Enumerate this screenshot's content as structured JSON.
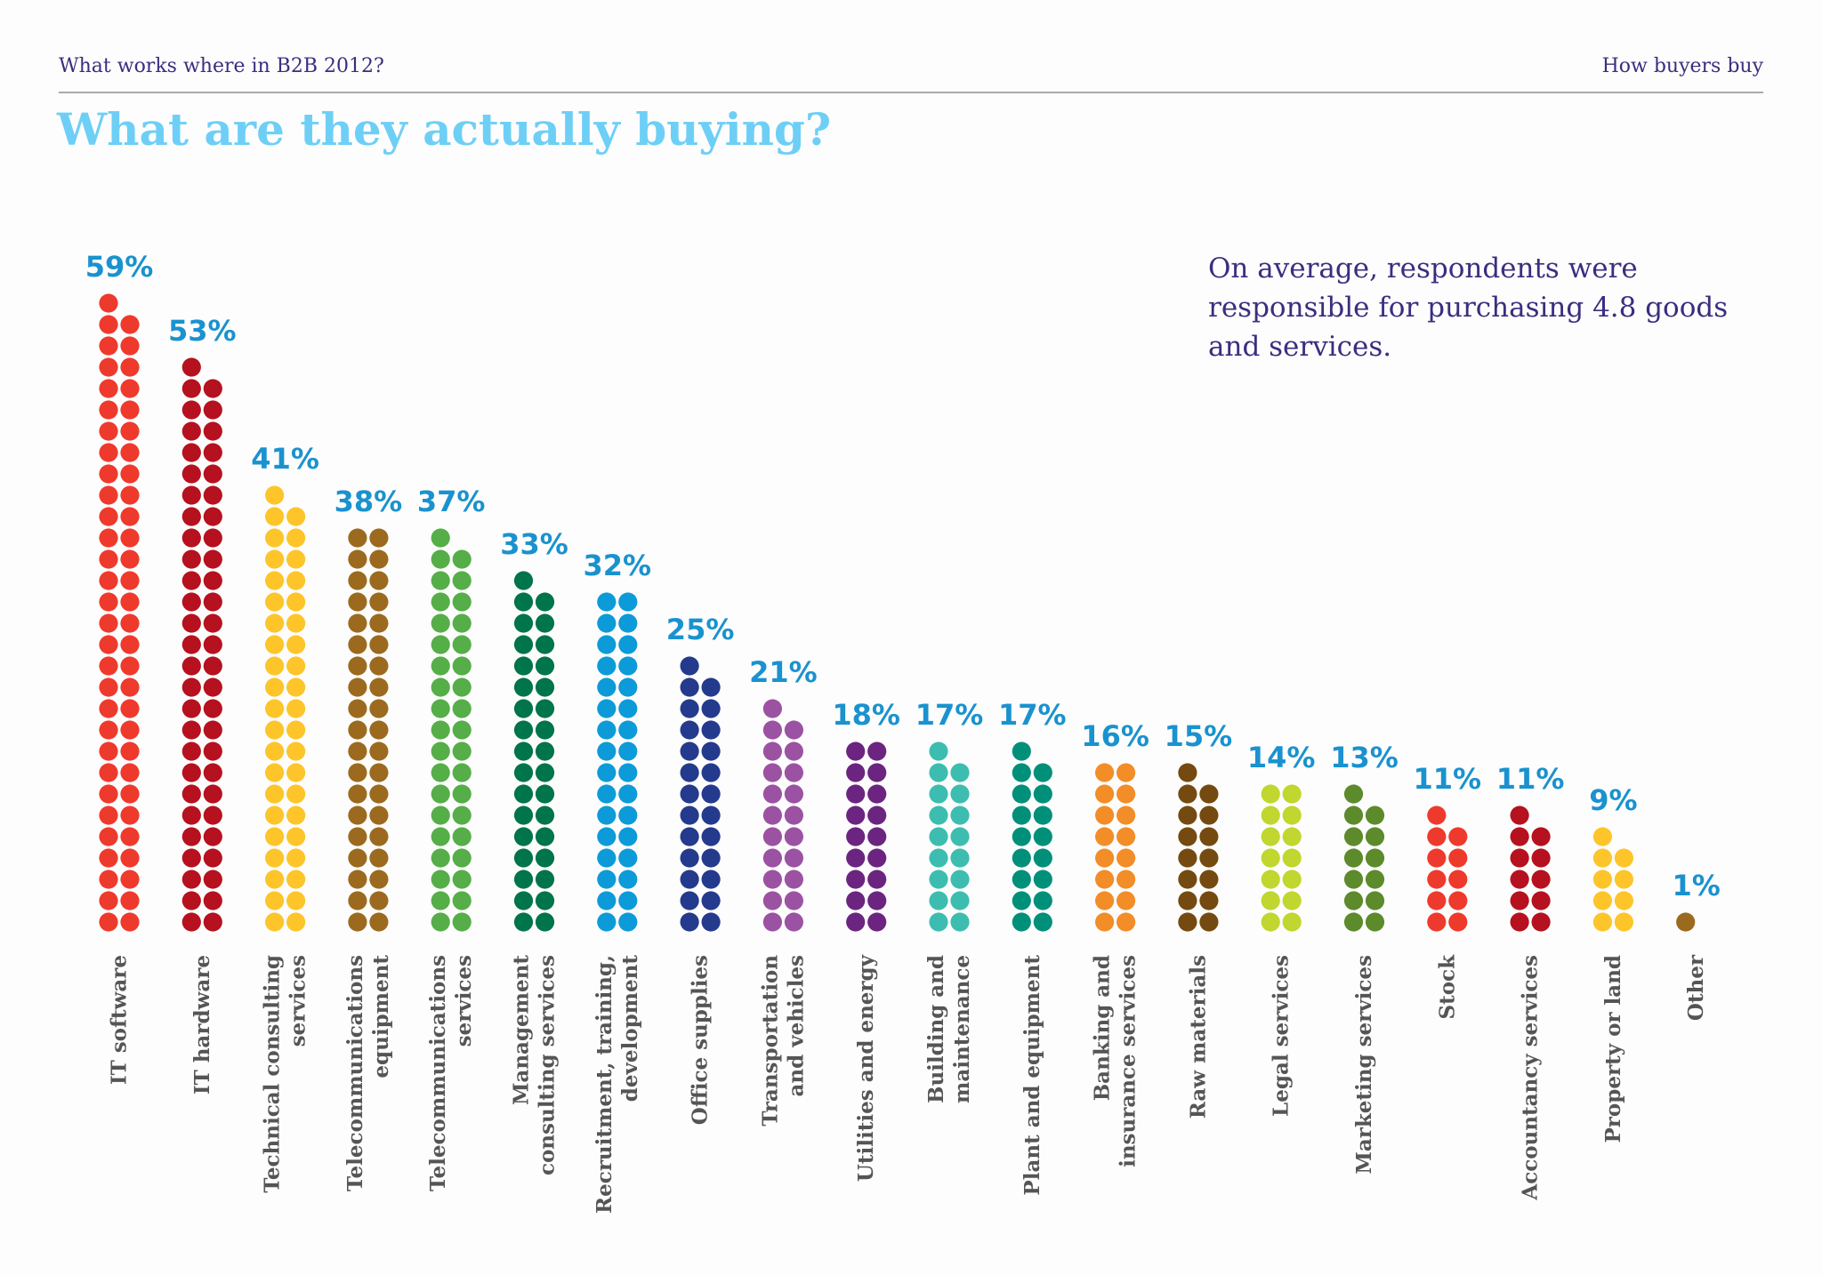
{
  "chart_data": {
    "type": "dots",
    "header": "What works where in B2B 2012?",
    "section": "How buyers buy",
    "title": "What are they actually buying?",
    "note": "On average, respondents were\nresponsible for purchasing 4.8 goods\nand services.",
    "categories": [
      "IT software",
      "IT hardware",
      "Technical consulting\nservices",
      "Telecommunications\nequipment",
      "Telecommunications\nservices",
      "Management\nconsulting services",
      "Recruitment, training,\ndevelopment",
      "Office supplies",
      "Transportation\nand vehicles",
      "Utilities and energy",
      "Building and\nmaintenance",
      "Plant and equipment",
      "Banking and\ninsurance services",
      "Raw materials",
      "Legal services",
      "Marketing services",
      "Stock",
      "Accountancy services",
      "Property or land",
      "Other"
    ],
    "values": [
      59,
      53,
      41,
      38,
      37,
      33,
      32,
      25,
      21,
      18,
      17,
      17,
      16,
      15,
      14,
      13,
      11,
      11,
      9,
      1
    ],
    "value_labels": [
      "59%",
      "53%",
      "41%",
      "38%",
      "37%",
      "33%",
      "32%",
      "25%",
      "21%",
      "18%",
      "17%",
      "17%",
      "16%",
      "15%",
      "14%",
      "13%",
      "11%",
      "11%",
      "9%",
      "1%"
    ],
    "colors": [
      "#ee3a2c",
      "#b5111f",
      "#fdc52a",
      "#9b6a1f",
      "#55ae47",
      "#00744a",
      "#0c9bd8",
      "#233a8d",
      "#9b52a3",
      "#6b2580",
      "#3dbdb0",
      "#00907a",
      "#f28d28",
      "#754a10",
      "#c1d62e",
      "#5d8a2b",
      "#ee3a2c",
      "#b5111f",
      "#fdc52a",
      "#9b6a1f"
    ]
  }
}
